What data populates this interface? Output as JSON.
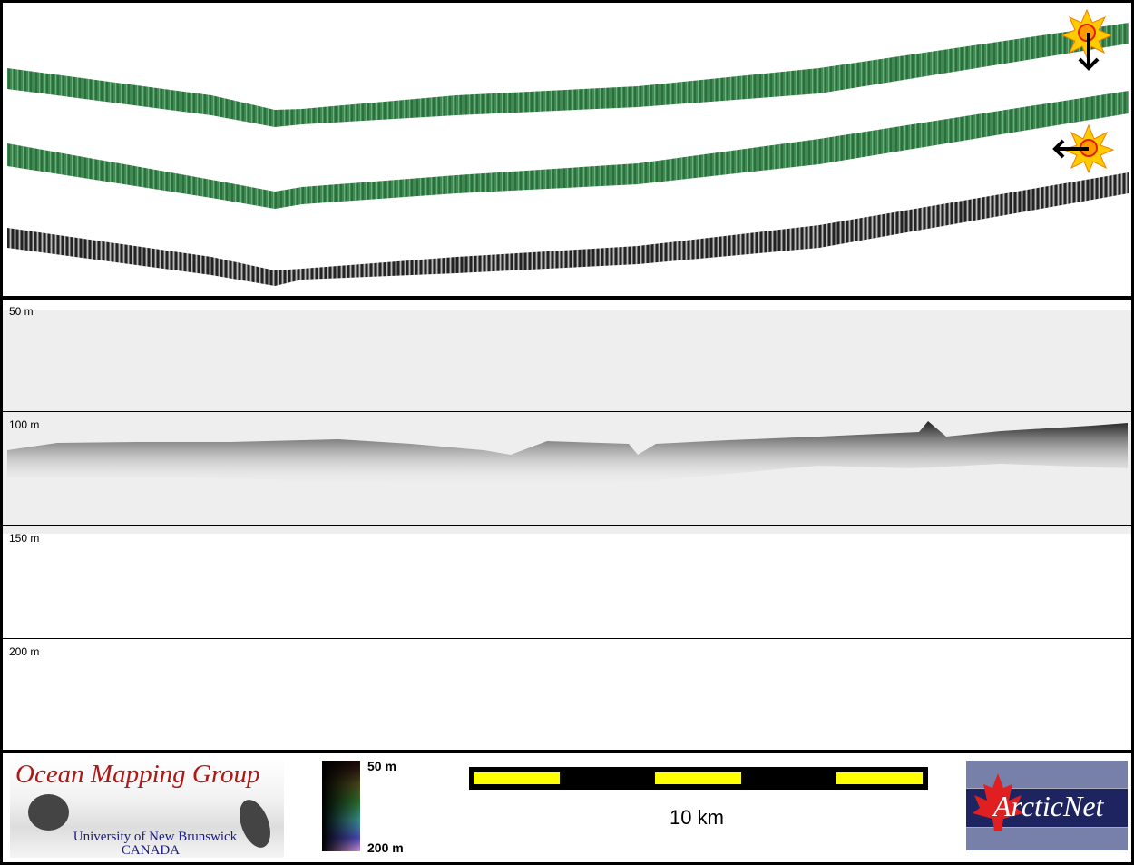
{
  "map": {
    "swaths": [
      {
        "name": "shaded-relief-sun-north",
        "color": "#3f8a52"
      },
      {
        "name": "shaded-relief-sun-east",
        "color": "#3f8a52"
      },
      {
        "name": "backscatter",
        "color": "#555555"
      }
    ],
    "illumination_icons": [
      "sun-arrow-down-icon",
      "sun-arrow-left-icon"
    ]
  },
  "profile": {
    "depth_labels": [
      "50 m",
      "100 m",
      "150 m",
      "200 m"
    ],
    "background": "#eeeeee"
  },
  "footer": {
    "omg": {
      "title": "Ocean Mapping Group",
      "line1": "University of New Brunswick",
      "line2": "CANADA"
    },
    "legend": {
      "top": "50 m",
      "bottom": "200 m"
    },
    "scale": {
      "label": "10 km",
      "colors": [
        "#000000",
        "#ffff00"
      ]
    },
    "arcticnet": {
      "text": "ArcticNet"
    }
  }
}
